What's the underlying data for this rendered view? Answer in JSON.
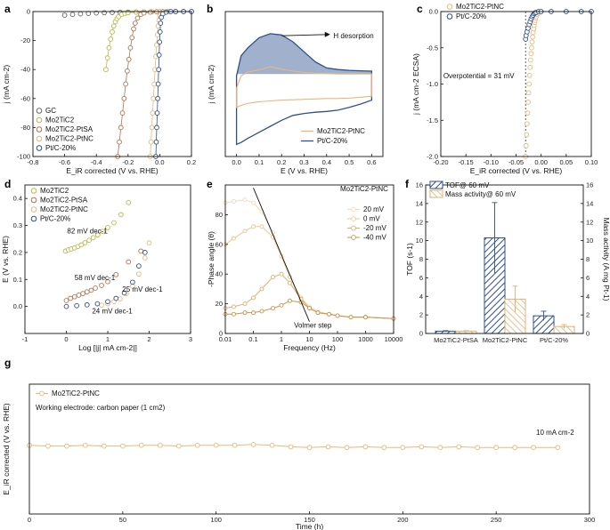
{
  "colors": {
    "gc": "#f0f0f0",
    "mo2tic2": "#b8b84a",
    "pt_sa": "#b07350",
    "pt_nc": "#e8b87a",
    "pt_c": "#2f4f8f",
    "tof": "#2f4f8f",
    "mass": "#e0b070",
    "phase20": "#f2dcb8",
    "phase0": "#e9c896",
    "phasem20": "#dcb070",
    "phasem40": "#c89550",
    "axis": "#111111"
  },
  "chart_data": [
    {
      "panel": "a",
      "type": "line",
      "xlabel": "E_iR corrected (V vs. RHE)",
      "ylabel": "j (mA cm-2)",
      "xlim": [
        -0.8,
        0.2
      ],
      "ylim": [
        -100,
        0
      ],
      "xticks": [
        "-0.8",
        "-0.6",
        "-0.4",
        "-0.2",
        "0.0",
        "0.2"
      ],
      "yticks": [
        "-100",
        "-80",
        "-60",
        "-40",
        "-20",
        "0"
      ],
      "legend": [
        "GC",
        "Mo2TiC2",
        "Mo2TiC2-PtSA",
        "Mo2TiC2-PtNC",
        "Pt/C-20%"
      ],
      "series": [
        {
          "name": "GC",
          "x": [
            -0.6,
            -0.55,
            -0.5,
            -0.45,
            -0.4,
            -0.35,
            -0.3,
            -0.25,
            -0.2,
            -0.15,
            -0.1,
            -0.05,
            0.0,
            0.05,
            0.1,
            0.15,
            0.2
          ],
          "y": [
            -2.5,
            -2.0,
            -1.6,
            -1.3,
            -1.0,
            -0.8,
            -0.6,
            -0.5,
            -0.4,
            -0.3,
            -0.2,
            -0.15,
            -0.1,
            -0.05,
            0,
            0,
            0
          ]
        },
        {
          "name": "Mo2TiC2",
          "x": [
            -0.34,
            -0.33,
            -0.32,
            -0.31,
            -0.3,
            -0.29,
            -0.28,
            -0.27,
            -0.26,
            -0.24,
            -0.22,
            -0.2,
            -0.15,
            -0.1,
            -0.05,
            0.0,
            0.05,
            0.1,
            0.15,
            0.2
          ],
          "y": [
            -40,
            -32,
            -25,
            -19,
            -14,
            -10,
            -7,
            -5,
            -3.5,
            -2,
            -1.2,
            -0.8,
            -0.4,
            -0.2,
            -0.1,
            0,
            0,
            0,
            0,
            0
          ]
        },
        {
          "name": "Mo2TiC2-PtSA",
          "x": [
            -0.265,
            -0.255,
            -0.245,
            -0.235,
            -0.225,
            -0.215,
            -0.205,
            -0.195,
            -0.185,
            -0.175,
            -0.165,
            -0.155,
            -0.14,
            -0.12,
            -0.1,
            -0.06,
            -0.02,
            0.02,
            0.06,
            0.1,
            0.15,
            0.2
          ],
          "y": [
            -100,
            -90,
            -80,
            -70,
            -60,
            -50,
            -41,
            -33,
            -25,
            -18,
            -12,
            -8,
            -4.5,
            -2,
            -1,
            -0.4,
            -0.1,
            0,
            0,
            0,
            0,
            0
          ]
        },
        {
          "name": "Mo2TiC2-PtNC",
          "x": [
            -0.06,
            -0.055,
            -0.05,
            -0.045,
            -0.04,
            -0.035,
            -0.03,
            -0.025,
            -0.02,
            -0.015,
            -0.01,
            -0.005,
            0.0,
            0.01,
            0.03,
            0.06,
            0.1,
            0.15,
            0.2
          ],
          "y": [
            -100,
            -90,
            -80,
            -70,
            -60,
            -50,
            -40,
            -31,
            -23,
            -16,
            -10,
            -6,
            -3,
            -1,
            -0.3,
            0,
            0,
            0,
            0
          ]
        },
        {
          "name": "Pt/C-20%",
          "x": [
            -0.025,
            -0.022,
            -0.019,
            -0.016,
            -0.013,
            -0.01,
            -0.007,
            -0.004,
            -0.001,
            0.002,
            0.005,
            0.01,
            0.02,
            0.04,
            0.07,
            0.1,
            0.15,
            0.2
          ],
          "y": [
            -100,
            -90,
            -80,
            -70,
            -60,
            -50,
            -40,
            -30,
            -21,
            -14,
            -8,
            -4,
            -1.5,
            -0.4,
            0,
            0,
            0,
            0
          ]
        }
      ]
    },
    {
      "panel": "b",
      "type": "line",
      "xlabel": "E (V vs. RHE)",
      "ylabel": "j (mA cm-2)",
      "xlim": [
        -0.05,
        0.65
      ],
      "xticks": [
        "0.0",
        "0.1",
        "0.2",
        "0.3",
        "0.4",
        "0.5",
        "0.6"
      ],
      "annotation": "H desorption",
      "legend": [
        "Mo2TiC2-PtNC",
        "Pt/C-20%"
      ],
      "series": [
        {
          "name": "Pt/C-20%",
          "x": [
            0.0,
            0.02,
            0.05,
            0.1,
            0.15,
            0.2,
            0.25,
            0.3,
            0.35,
            0.4,
            0.45,
            0.5,
            0.55,
            0.6,
            0.6,
            0.55,
            0.5,
            0.45,
            0.4,
            0.35,
            0.3,
            0.25,
            0.2,
            0.15,
            0.1,
            0.05,
            0.02,
            0.0
          ],
          "y": [
            2,
            7,
            9,
            11.5,
            12.5,
            12.2,
            10.5,
            8,
            5.5,
            4,
            3.6,
            3.4,
            3.3,
            3.2,
            -4,
            -5,
            -5.8,
            -6.5,
            -6.8,
            -7,
            -7.3,
            -7.8,
            -9,
            -10.5,
            -12,
            -13.5,
            -14.5,
            -15
          ]
        },
        {
          "name": "Mo2TiC2-PtNC",
          "x": [
            0.0,
            0.02,
            0.05,
            0.1,
            0.15,
            0.2,
            0.25,
            0.3,
            0.35,
            0.4,
            0.45,
            0.5,
            0.55,
            0.6,
            0.6,
            0.55,
            0.5,
            0.45,
            0.4,
            0.35,
            0.3,
            0.25,
            0.2,
            0.15,
            0.1,
            0.05,
            0.02,
            0.0
          ],
          "y": [
            -1,
            2,
            3,
            3.5,
            4.3,
            3.7,
            3.2,
            2.9,
            2.7,
            2.6,
            2.5,
            2.5,
            2.5,
            2.5,
            -3,
            -3.3,
            -3.5,
            -3.6,
            -3.6,
            -3.7,
            -3.8,
            -3.9,
            -4,
            -4.2,
            -4.4,
            -4.8,
            -5.3,
            -5.8
          ]
        }
      ]
    },
    {
      "panel": "c",
      "type": "line",
      "xlabel": "E_iR corrected (V vs. RHE)",
      "ylabel": "j (mA cm-2 ECSA)",
      "xlim": [
        -0.2,
        0.1
      ],
      "ylim": [
        -2.0,
        0
      ],
      "xticks": [
        "-0.20",
        "-0.15",
        "-0.10",
        "-0.05",
        "0.00",
        "0.05",
        "0.10"
      ],
      "yticks": [
        "-2.0",
        "-1.5",
        "-1.0",
        "-0.5",
        "0.0"
      ],
      "annotation": "Overpotential = 31 mV",
      "marker_line_x": -0.031,
      "legend": [
        "Mo2TiC2-PtNC",
        "Pt/C-20%"
      ],
      "series": [
        {
          "name": "Pt/C-20%",
          "x": [
            -0.031,
            -0.03,
            -0.028,
            -0.026,
            -0.024,
            -0.022,
            -0.02,
            -0.018,
            -0.016,
            -0.014,
            -0.012,
            -0.01,
            -0.005,
            0.0,
            0.02,
            0.05,
            0.08,
            0.1
          ],
          "y": [
            -0.38,
            -0.33,
            -0.28,
            -0.23,
            -0.18,
            -0.14,
            -0.1,
            -0.07,
            -0.05,
            -0.03,
            -0.02,
            -0.01,
            0,
            0,
            0,
            0,
            0,
            0
          ]
        },
        {
          "name": "Mo2TiC2-PtNC",
          "x": [
            -0.031,
            -0.03,
            -0.029,
            -0.028,
            -0.027,
            -0.026,
            -0.025,
            -0.024,
            -0.023,
            -0.022,
            -0.021,
            -0.02,
            -0.019,
            -0.018,
            -0.017,
            -0.016,
            -0.015,
            -0.014,
            -0.013,
            -0.012,
            -0.011,
            -0.01,
            -0.008,
            -0.005,
            0.0,
            0.02,
            0.05,
            0.08,
            0.1
          ],
          "y": [
            -2.0,
            -1.85,
            -1.7,
            -1.55,
            -1.4,
            -1.25,
            -1.12,
            -1.0,
            -0.88,
            -0.77,
            -0.67,
            -0.58,
            -0.5,
            -0.42,
            -0.35,
            -0.29,
            -0.24,
            -0.19,
            -0.15,
            -0.12,
            -0.09,
            -0.07,
            -0.04,
            -0.02,
            0,
            0,
            0,
            0,
            0
          ]
        }
      ]
    },
    {
      "panel": "d",
      "type": "scatter",
      "xlabel": "Log [|j| mA cm-2|]",
      "ylabel": "E (V vs. RHE)",
      "xlim": [
        -1,
        3
      ],
      "ylim": [
        -0.1,
        0.45
      ],
      "xticks": [
        "-1",
        "0",
        "1",
        "2",
        "3"
      ],
      "yticks": [
        "0.0",
        "0.1",
        "0.2",
        "0.3",
        "0.4"
      ],
      "legend": [
        "Mo2TiC2",
        "Mo2TiC2-PtSA",
        "Mo2TiC2-PtNC",
        "Pt/C-20%"
      ],
      "slopes": [
        {
          "text": "82 mV dec-1",
          "series": "Mo2TiC2"
        },
        {
          "text": "58 mV dec-1",
          "series": "Mo2TiC2-PtSA"
        },
        {
          "text": "24 mV dec-1",
          "series": "Mo2TiC2-PtNC"
        },
        {
          "text": "25 mV dec-1",
          "series": "Pt/C-20%"
        }
      ],
      "series": [
        {
          "name": "Mo2TiC2",
          "x": [
            -0.02,
            0.05,
            0.12,
            0.2,
            0.28,
            0.36,
            0.45,
            0.55,
            0.65,
            0.76,
            0.88,
            1.0,
            1.15,
            1.32,
            1.5
          ],
          "y": [
            0.205,
            0.21,
            0.213,
            0.217,
            0.222,
            0.228,
            0.236,
            0.245,
            0.255,
            0.265,
            0.278,
            0.292,
            0.31,
            0.34,
            0.385
          ]
        },
        {
          "name": "Mo2TiC2-PtSA",
          "x": [
            0.0,
            0.1,
            0.2,
            0.3,
            0.4,
            0.5,
            0.6,
            0.7,
            0.85,
            1.0,
            1.2,
            1.5,
            1.8
          ],
          "y": [
            0.022,
            0.03,
            0.036,
            0.042,
            0.048,
            0.054,
            0.06,
            0.068,
            0.078,
            0.092,
            0.118,
            0.165,
            0.205
          ]
        },
        {
          "name": "Mo2TiC2-PtNC",
          "x": [
            0.85,
            1.0,
            1.15,
            1.3,
            1.45,
            1.6,
            1.75,
            1.9,
            2.0
          ],
          "y": [
            0.005,
            0.01,
            0.018,
            0.028,
            0.048,
            0.075,
            0.12,
            0.18,
            0.235
          ]
        },
        {
          "name": "Pt/C-20%",
          "x": [
            0.0,
            0.25,
            0.5,
            0.75,
            1.0,
            1.2,
            1.4,
            1.6,
            1.75,
            1.9
          ],
          "y": [
            0.0,
            0.003,
            0.006,
            0.01,
            0.018,
            0.03,
            0.05,
            0.09,
            0.15,
            0.2
          ]
        }
      ]
    },
    {
      "panel": "e",
      "type": "line",
      "xlabel": "Frequency (Hz)",
      "ylabel": "-Phase angle (θ)",
      "xscale": "log",
      "xlim": [
        0.01,
        10000
      ],
      "ylim": [
        0,
        100
      ],
      "xticks": [
        "0.01",
        "0.1",
        "1",
        "10",
        "100",
        "1000",
        "10000"
      ],
      "yticks": [
        "0",
        "20",
        "40",
        "60",
        "80"
      ],
      "title": "Mo2TiC2-PtNC",
      "annotation": "Volmer step",
      "legend": [
        "20 mV",
        "0 mV",
        "-20 mV",
        "-40 mV"
      ],
      "series": [
        {
          "name": "20 mV",
          "x": [
            0.01,
            0.02,
            0.05,
            0.1,
            0.2,
            0.5,
            1,
            2,
            5,
            10,
            20,
            50,
            100,
            300,
            1000,
            10000
          ],
          "y": [
            88,
            89,
            90,
            88,
            82,
            68,
            52,
            38,
            24,
            18,
            15,
            13,
            12,
            11,
            11,
            10
          ]
        },
        {
          "name": "0 mV",
          "x": [
            0.01,
            0.02,
            0.05,
            0.1,
            0.2,
            0.5,
            1,
            2,
            5,
            10,
            20,
            50,
            100,
            300,
            1000,
            10000
          ],
          "y": [
            60,
            64,
            69,
            72,
            72,
            65,
            52,
            38,
            24,
            17,
            14,
            13,
            12,
            11,
            11,
            10
          ]
        },
        {
          "name": "-20 mV",
          "x": [
            0.01,
            0.02,
            0.05,
            0.1,
            0.2,
            0.5,
            1,
            2,
            5,
            10,
            20,
            50,
            100,
            300,
            1000,
            10000
          ],
          "y": [
            17,
            18,
            20,
            24,
            30,
            38,
            40,
            34,
            23,
            17,
            14,
            13,
            12,
            11,
            11,
            10
          ]
        },
        {
          "name": "-40 mV",
          "x": [
            0.01,
            0.02,
            0.05,
            0.1,
            0.2,
            0.5,
            1,
            2,
            5,
            10,
            20,
            50,
            100,
            300,
            1000,
            10000
          ],
          "y": [
            13,
            13,
            14,
            14,
            15,
            17,
            19,
            22,
            21,
            17,
            14,
            13,
            12,
            11,
            11,
            10
          ]
        }
      ]
    },
    {
      "panel": "f",
      "type": "bar",
      "categories": [
        "Mo2TiC2-PtSA",
        "Mo2TiC2-PtNC",
        "Pt/C-20%"
      ],
      "ylabel_left": "TOF (s-1)",
      "ylabel_right": "Mass activity (A mg Pt-1)",
      "ylim": [
        0,
        16
      ],
      "yticks": [
        "0",
        "2",
        "4",
        "6",
        "8",
        "10",
        "12",
        "14",
        "16"
      ],
      "legend": [
        "TOF@ 60 mV",
        "Mass activity@ 60 mV"
      ],
      "series": [
        {
          "name": "TOF@ 60 mV",
          "values": [
            0.25,
            10.3,
            1.9
          ],
          "errors": [
            0.05,
            3.8,
            0.5
          ]
        },
        {
          "name": "Mass activity@ 60 mV",
          "values": [
            0.25,
            3.7,
            0.75
          ],
          "errors": [
            0.05,
            1.4,
            0.2
          ]
        }
      ]
    },
    {
      "panel": "g",
      "type": "line",
      "xlabel": "Time (h)",
      "ylabel": "E_iR corrected (V vs. RHE)",
      "xlim": [
        0,
        300
      ],
      "xticks": [
        "0",
        "50",
        "100",
        "150",
        "200",
        "250",
        "300"
      ],
      "legend": [
        "Mo2TiC2-PtNC"
      ],
      "note": "Working electrode: carbon paper (1 cm2)",
      "annotation": "10 mA cm-2",
      "series": [
        {
          "name": "Mo2TiC2-PtNC",
          "x": [
            0,
            10,
            20,
            30,
            40,
            50,
            60,
            70,
            80,
            90,
            100,
            110,
            120,
            130,
            140,
            150,
            160,
            170,
            180,
            190,
            200,
            210,
            220,
            230,
            240,
            250,
            260,
            270,
            283
          ],
          "y": [
            -0.03,
            -0.031,
            -0.031,
            -0.03,
            -0.031,
            -0.031,
            -0.03,
            -0.03,
            -0.031,
            -0.03,
            -0.03,
            -0.03,
            -0.029,
            -0.03,
            -0.032,
            -0.033,
            -0.032,
            -0.033,
            -0.032,
            -0.033,
            -0.033,
            -0.032,
            -0.033,
            -0.032,
            -0.033,
            -0.033,
            -0.033,
            -0.033,
            -0.033
          ]
        }
      ]
    }
  ]
}
